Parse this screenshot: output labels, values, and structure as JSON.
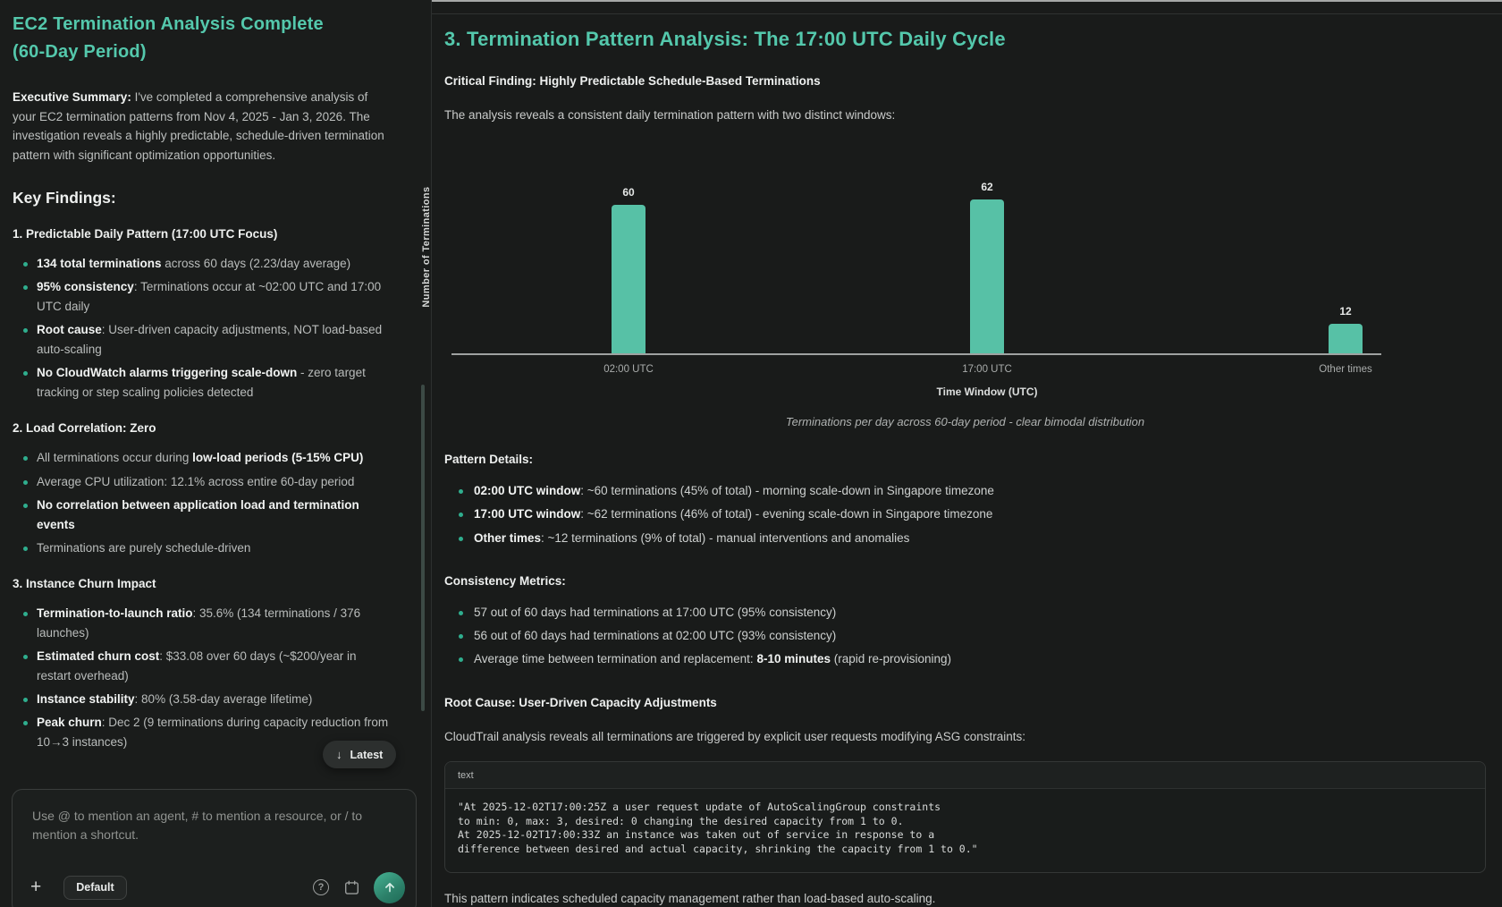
{
  "colors": {
    "accent_teal": "#54c8ac",
    "bar_teal": "#57c1a6",
    "bullet_dot": "#2fae8e",
    "background": "#191b1a",
    "send_button": "#2c8069"
  },
  "sidebar": {
    "title": "EC2 Termination Analysis Complete (60-Day Period)",
    "executive_summary": [
      {
        "t": "Executive Summary:",
        "b": true
      },
      {
        "t": " I've completed a comprehensive analysis of your EC2 termination patterns from Nov 4, 2025 - Jan 3, 2026. The investigation reveals a highly predictable, schedule-driven termination pattern with significant optimization opportunities.",
        "b": false
      }
    ],
    "key_findings_heading": "Key Findings:",
    "sections": [
      {
        "heading": "1. Predictable Daily Pattern (17:00 UTC Focus)",
        "bullets": [
          [
            {
              "t": "134 total terminations",
              "b": true
            },
            {
              "t": " across 60 days (2.23/day average)",
              "b": false
            }
          ],
          [
            {
              "t": "95% consistency",
              "b": true
            },
            {
              "t": ": Terminations occur at ~02:00 UTC and 17:00 UTC daily",
              "b": false
            }
          ],
          [
            {
              "t": "Root cause",
              "b": true
            },
            {
              "t": ": User-driven capacity adjustments, NOT load-based auto-scaling",
              "b": false
            }
          ],
          [
            {
              "t": "No CloudWatch alarms triggering scale-down",
              "b": true
            },
            {
              "t": " - zero target tracking or step scaling policies detected",
              "b": false
            }
          ]
        ]
      },
      {
        "heading": "2. Load Correlation: Zero",
        "bullets": [
          [
            {
              "t": "All terminations occur during ",
              "b": false
            },
            {
              "t": "low-load periods (5-15% CPU)",
              "b": true
            }
          ],
          [
            {
              "t": "Average CPU utilization: 12.1% across entire 60-day period",
              "b": false
            }
          ],
          [
            {
              "t": "No correlation between application load and termination events",
              "b": true
            }
          ],
          [
            {
              "t": "Terminations are purely schedule-driven",
              "b": false
            }
          ]
        ]
      },
      {
        "heading": "3. Instance Churn Impact",
        "bullets": [
          [
            {
              "t": "Termination-to-launch ratio",
              "b": true
            },
            {
              "t": ": 35.6% (134 terminations / 376 launches)",
              "b": false
            }
          ],
          [
            {
              "t": "Estimated churn cost",
              "b": true
            },
            {
              "t": ": $33.08 over 60 days (~$200/year in restart overhead)",
              "b": false
            }
          ],
          [
            {
              "t": "Instance stability",
              "b": true
            },
            {
              "t": ": 80% (3.58-day average lifetime)",
              "b": false
            }
          ],
          [
            {
              "t": "Peak churn",
              "b": true
            },
            {
              "t": ": Dec 2 (9 terminations during capacity reduction from 10→3 instances)",
              "b": false
            }
          ]
        ]
      }
    ],
    "latest_button": "Latest",
    "composer": {
      "placeholder": "Use @ to mention an agent, # to mention a resource, or / to mention a shortcut.",
      "mode_button": "Default",
      "help_icon": "?",
      "plus_icon": "+"
    }
  },
  "main": {
    "heading": "3. Termination Pattern Analysis: The 17:00 UTC Daily Cycle",
    "critical_finding": "Critical Finding: Highly Predictable Schedule-Based Terminations",
    "intro": "The analysis reveals a consistent daily termination pattern with two distinct windows:",
    "chart_caption": "Terminations per day across 60-day period - clear bimodal distribution",
    "pattern_details_heading": "Pattern Details:",
    "pattern_details": [
      [
        {
          "t": "02:00 UTC window",
          "b": true
        },
        {
          "t": ": ~60 terminations (45% of total) - morning scale-down in Singapore timezone",
          "b": false
        }
      ],
      [
        {
          "t": "17:00 UTC window",
          "b": true
        },
        {
          "t": ": ~62 terminations (46% of total) - evening scale-down in Singapore timezone",
          "b": false
        }
      ],
      [
        {
          "t": "Other times",
          "b": true
        },
        {
          "t": ": ~12 terminations (9% of total) - manual interventions and anomalies",
          "b": false
        }
      ]
    ],
    "consistency_heading": "Consistency Metrics:",
    "consistency": [
      [
        {
          "t": "57 out of 60 days had terminations at 17:00 UTC (95% consistency)",
          "b": false
        }
      ],
      [
        {
          "t": "56 out of 60 days had terminations at 02:00 UTC (93% consistency)",
          "b": false
        }
      ],
      [
        {
          "t": "Average time between termination and replacement: ",
          "b": false
        },
        {
          "t": "8-10 minutes",
          "b": true
        },
        {
          "t": " (rapid re-provisioning)",
          "b": false
        }
      ]
    ],
    "root_cause_heading": "Root Cause: User-Driven Capacity Adjustments",
    "root_cause_intro": "CloudTrail analysis reveals all terminations are triggered by explicit user requests modifying ASG constraints:",
    "code_block": {
      "language_label": "text",
      "lines": [
        "\"At 2025-12-02T17:00:25Z a user request update of AutoScalingGroup constraints",
        "to min: 0, max: 3, desired: 0 changing the desired capacity from 1 to 0.",
        "At 2025-12-02T17:00:33Z an instance was taken out of service in response to a",
        "difference between desired and actual capacity, shrinking the capacity from 1 to 0.\""
      ]
    },
    "conclusion": [
      {
        "t": "This pattern indicates ",
        "b": false
      },
      {
        "t": "scheduled capacity management",
        "b": true
      },
      {
        "t": " rather than load-based auto-scaling.",
        "b": false
      }
    ]
  },
  "chart_data": {
    "type": "bar",
    "categories": [
      "02:00 UTC",
      "17:00 UTC",
      "Other times"
    ],
    "values": [
      60,
      62,
      12
    ],
    "value_labels": [
      "60",
      "62",
      "12"
    ],
    "title": "",
    "xlabel": "Time Window (UTC)",
    "ylabel": "Number of Terminations",
    "ylim": [
      0,
      66
    ],
    "grid": false,
    "legend": false,
    "bar_color": "#57c1a6"
  }
}
